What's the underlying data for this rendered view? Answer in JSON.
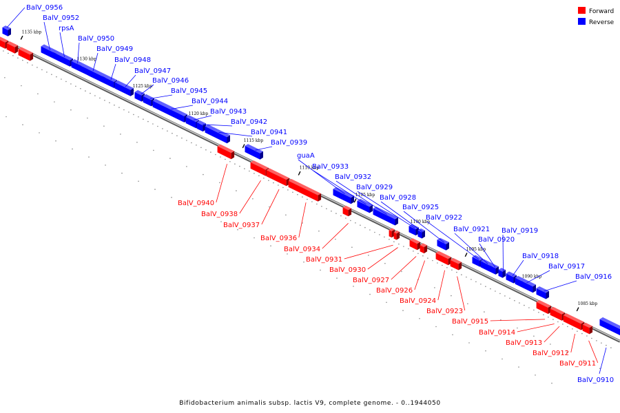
{
  "caption": "Bifidobacterium animalis subsp. lactis V9, complete genome. - 0..1944050",
  "legend": [
    {
      "label": "Forward",
      "color": "#ff0000"
    },
    {
      "label": "Reverse",
      "color": "#0000ff"
    }
  ],
  "colors": {
    "forward": "#ff0000",
    "reverse": "#0000ff",
    "backbone": "#808080"
  },
  "ticks": [
    "1135 kbp",
    "1130 kbp",
    "1125 kbp",
    "1120 kbp",
    "1115 kbp",
    "1110 kbp",
    "1105 kbp",
    "1100 kbp",
    "1095 kbp",
    "1090 kbp",
    "1085 kbp"
  ],
  "genes_reverse": [
    "BalV_0956",
    "BalV_0952",
    "rpsA",
    "BalV_0950",
    "BalV_0949",
    "BalV_0948",
    "BalV_0947",
    "BalV_0946",
    "BalV_0945",
    "BalV_0944",
    "BalV_0943",
    "BalV_0942",
    "BalV_0941",
    "BalV_0939",
    "guaA",
    "BalV_0933",
    "BalV_0932",
    "BalV_0929",
    "BalV_0928",
    "BalV_0925",
    "BalV_0922",
    "BalV_0921",
    "BalV_0920",
    "BalV_0919",
    "BalV_0918",
    "BalV_0917",
    "BalV_0916",
    "BalV_0910"
  ],
  "genes_forward": [
    "BalV_0940",
    "BalV_0938",
    "BalV_0937",
    "BalV_0936",
    "BalV_0934",
    "BalV_0931",
    "BalV_0930",
    "BalV_0927",
    "BalV_0926",
    "BalV_0924",
    "BalV_0923",
    "BalV_0915",
    "BalV_0914",
    "BalV_0913",
    "BalV_0912",
    "BalV_0911"
  ]
}
